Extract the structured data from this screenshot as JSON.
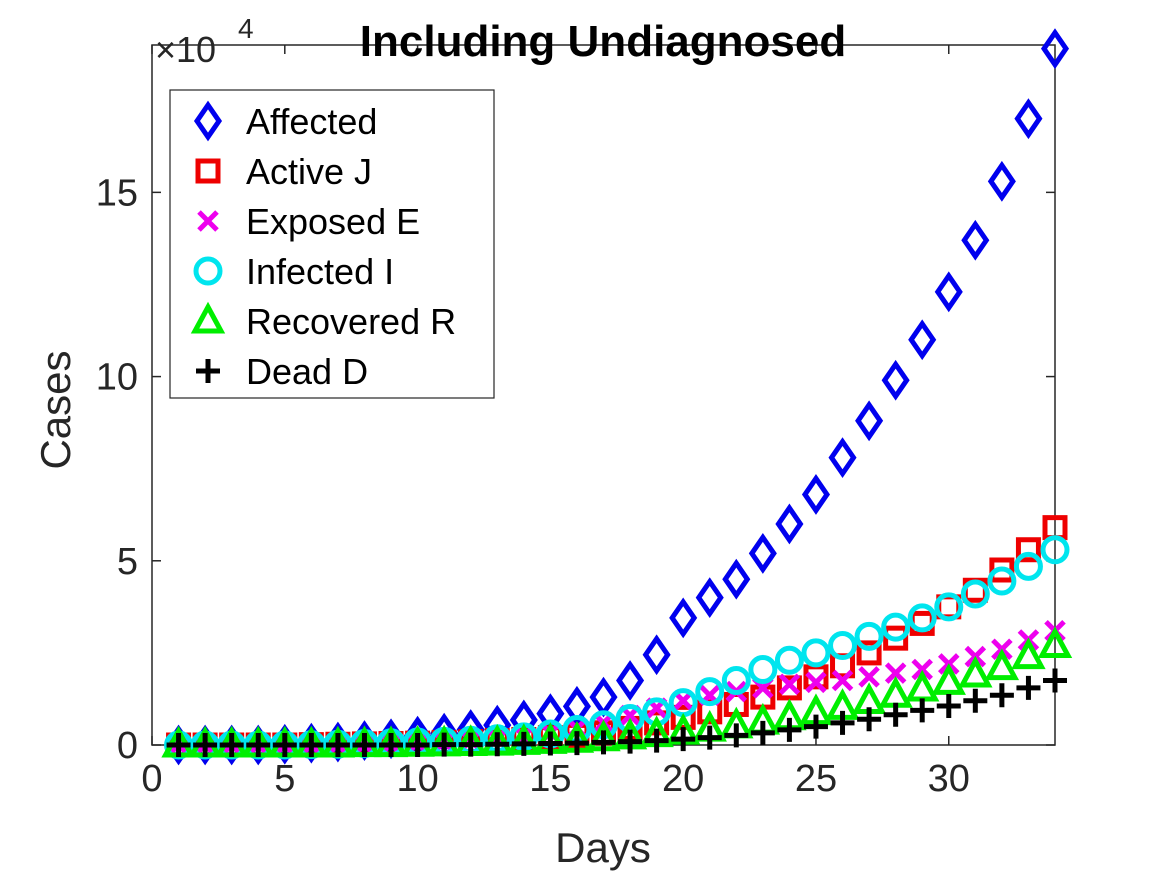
{
  "chart_data": {
    "type": "scatter",
    "title": "Including Undiagnosed",
    "xlabel": "Days",
    "ylabel": "Cases",
    "y_multiplier_label": "×10",
    "y_multiplier_exp": "4",
    "xlim": [
      0,
      34
    ],
    "ylim": [
      0,
      19
    ],
    "xticks": [
      0,
      5,
      10,
      15,
      20,
      25,
      30
    ],
    "yticks": [
      0,
      5,
      10,
      15
    ],
    "grid": false,
    "legend_position": "top-left",
    "x": [
      1,
      2,
      3,
      4,
      5,
      6,
      7,
      8,
      9,
      10,
      11,
      12,
      13,
      14,
      15,
      16,
      17,
      18,
      19,
      20,
      21,
      22,
      23,
      24,
      25,
      26,
      27,
      28,
      29,
      30,
      31,
      32,
      33,
      34
    ],
    "series": [
      {
        "name": "Affected",
        "marker": "diamond",
        "color": "#0000ee",
        "values": [
          0,
          0,
          0,
          0,
          0.02,
          0.05,
          0.08,
          0.12,
          0.17,
          0.24,
          0.32,
          0.42,
          0.54,
          0.68,
          0.85,
          1.05,
          1.3,
          1.75,
          2.45,
          3.45,
          4.0,
          4.5,
          5.2,
          6.0,
          6.8,
          7.8,
          8.8,
          9.9,
          11.0,
          12.3,
          13.7,
          15.3,
          17.0,
          18.9
        ]
      },
      {
        "name": "Active J",
        "marker": "square",
        "color": "#ee0000",
        "values": [
          0,
          0,
          0,
          0,
          0,
          0.01,
          0.02,
          0.03,
          0.04,
          0.05,
          0.07,
          0.09,
          0.12,
          0.15,
          0.2,
          0.26,
          0.33,
          0.45,
          0.6,
          0.75,
          0.9,
          1.1,
          1.3,
          1.55,
          1.85,
          2.15,
          2.5,
          2.9,
          3.3,
          3.75,
          4.2,
          4.75,
          5.3,
          5.9
        ]
      },
      {
        "name": "Exposed E",
        "marker": "x",
        "color": "#ee00ee",
        "values": [
          0,
          0,
          0,
          0,
          0,
          0,
          0.01,
          0.02,
          0.03,
          0.05,
          0.08,
          0.12,
          0.17,
          0.24,
          0.33,
          0.45,
          0.6,
          0.8,
          1.0,
          1.2,
          1.35,
          1.45,
          1.55,
          1.65,
          1.7,
          1.75,
          1.85,
          1.95,
          2.05,
          2.2,
          2.4,
          2.6,
          2.85,
          3.1
        ]
      },
      {
        "name": "Infected I",
        "marker": "circle",
        "color": "#00e5ee",
        "values": [
          0,
          0,
          0,
          0,
          0,
          0.01,
          0.02,
          0.04,
          0.06,
          0.08,
          0.1,
          0.13,
          0.17,
          0.22,
          0.3,
          0.42,
          0.55,
          0.72,
          0.9,
          1.15,
          1.45,
          1.75,
          2.05,
          2.3,
          2.5,
          2.7,
          2.95,
          3.2,
          3.45,
          3.75,
          4.1,
          4.45,
          4.85,
          5.3
        ]
      },
      {
        "name": "Recovered R",
        "marker": "triangle",
        "color": "#00ee00",
        "values": [
          0,
          0,
          0,
          0,
          0,
          0,
          0,
          0.01,
          0.01,
          0.02,
          0.03,
          0.04,
          0.05,
          0.07,
          0.1,
          0.13,
          0.17,
          0.22,
          0.28,
          0.35,
          0.43,
          0.52,
          0.62,
          0.74,
          0.88,
          1.02,
          1.18,
          1.35,
          1.52,
          1.7,
          1.9,
          2.1,
          2.4,
          2.7
        ]
      },
      {
        "name": "Dead D",
        "marker": "plus",
        "color": "#000000",
        "values": [
          0,
          0,
          0,
          0,
          0,
          0,
          0,
          0,
          0,
          0,
          0.01,
          0.01,
          0.02,
          0.03,
          0.04,
          0.05,
          0.07,
          0.09,
          0.12,
          0.16,
          0.2,
          0.26,
          0.33,
          0.41,
          0.5,
          0.6,
          0.7,
          0.82,
          0.94,
          1.06,
          1.2,
          1.35,
          1.55,
          1.75
        ]
      }
    ]
  }
}
